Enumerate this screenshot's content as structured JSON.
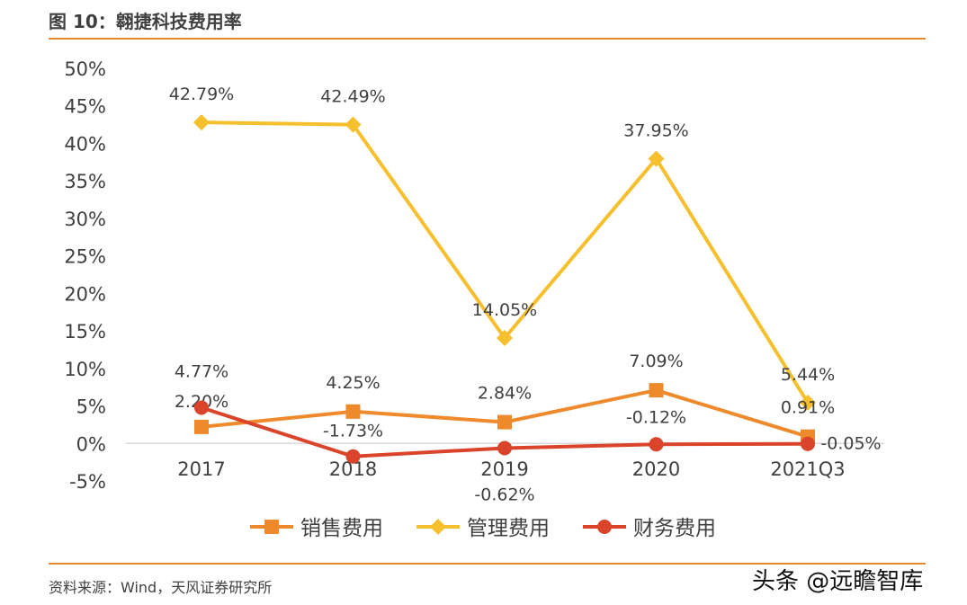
{
  "title": "图 10：翱捷科技费用率",
  "source": "资料来源：Wind，天风证券研究所",
  "watermark": "头条 @远瞻智库",
  "chart_data": {
    "type": "line",
    "title": "",
    "categories": [
      "2017",
      "2018",
      "2019",
      "2020",
      "2021Q3"
    ],
    "ylim": [
      -5,
      50
    ],
    "yticks": [
      -5,
      0,
      5,
      10,
      15,
      20,
      25,
      30,
      35,
      40,
      45,
      50
    ],
    "grid": false,
    "legend_position": "bottom",
    "series": [
      {
        "name": "销售费用",
        "color": "#ee8a2c",
        "marker": "square",
        "values": [
          2.2,
          4.25,
          2.84,
          7.09,
          0.91
        ],
        "labels": [
          "2.20%",
          "4.25%",
          "2.84%",
          "7.09%",
          "0.91%"
        ]
      },
      {
        "name": "管理费用",
        "color": "#f5bf2e",
        "marker": "diamond",
        "values": [
          42.79,
          42.49,
          14.05,
          37.95,
          5.44
        ],
        "labels": [
          "42.79%",
          "42.49%",
          "14.05%",
          "37.95%",
          "5.44%"
        ]
      },
      {
        "name": "财务费用",
        "color": "#d9442a",
        "marker": "circle",
        "values": [
          4.77,
          -1.73,
          -0.62,
          -0.12,
          -0.05
        ],
        "labels": [
          "4.77%",
          "-1.73%",
          "-0.62%",
          "-0.12%",
          "-0.05%"
        ]
      }
    ]
  }
}
